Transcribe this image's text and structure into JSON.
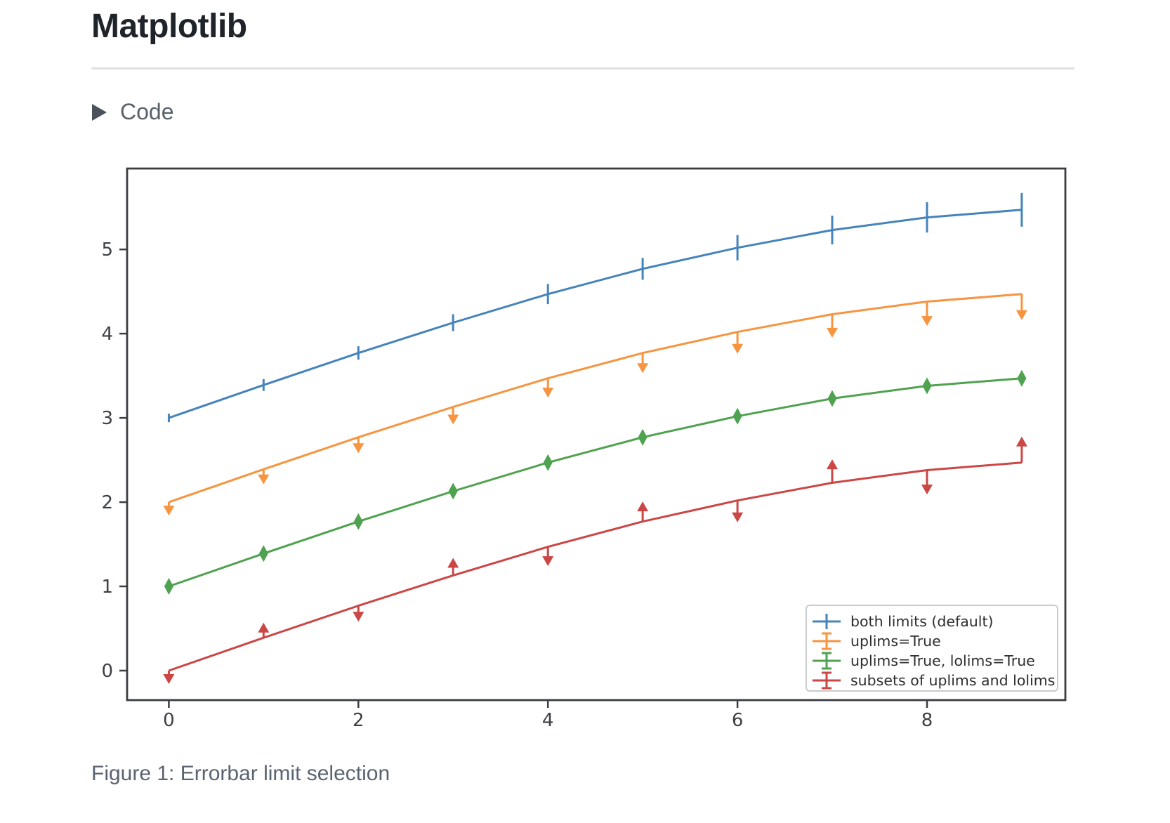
{
  "page": {
    "title": "Matplotlib",
    "code_toggle": {
      "label": "Code",
      "icon": "triangle-right-icon",
      "state": "collapsed"
    },
    "caption": "Figure 1: Errorbar limit selection"
  },
  "chart_data": {
    "type": "line",
    "x": [
      0,
      1,
      2,
      3,
      4,
      5,
      6,
      7,
      8,
      9
    ],
    "series": [
      {
        "name": "both limits (default)",
        "color": "#4583bb",
        "limits": "both",
        "values": [
          3.0,
          3.39,
          3.77,
          4.13,
          4.47,
          4.77,
          5.02,
          5.23,
          5.38,
          5.47
        ],
        "yerr": [
          0.05,
          0.07,
          0.08,
          0.1,
          0.12,
          0.13,
          0.15,
          0.17,
          0.18,
          0.2
        ]
      },
      {
        "name": "uplims=True",
        "color": "#f79440",
        "limits": "uplims",
        "values": [
          2.0,
          2.39,
          2.77,
          3.13,
          3.47,
          3.77,
          4.02,
          4.23,
          4.38,
          4.47
        ],
        "yerr": [
          0.05,
          0.07,
          0.08,
          0.1,
          0.12,
          0.13,
          0.15,
          0.17,
          0.18,
          0.2
        ]
      },
      {
        "name": "uplims=True, lolims=True",
        "color": "#4fa24f",
        "limits": "uplims_lolims",
        "values": [
          1.0,
          1.39,
          1.77,
          2.13,
          2.47,
          2.77,
          3.02,
          3.23,
          3.38,
          3.47
        ],
        "yerr": [
          0.05,
          0.07,
          0.08,
          0.1,
          0.12,
          0.13,
          0.15,
          0.17,
          0.18,
          0.2
        ]
      },
      {
        "name": "subsets of uplims and lolims",
        "color": "#cb4644",
        "limits": "alternating",
        "values": [
          0.0,
          0.39,
          0.77,
          1.13,
          1.47,
          1.77,
          2.02,
          2.23,
          2.38,
          2.47
        ],
        "yerr": [
          0.05,
          0.07,
          0.08,
          0.1,
          0.12,
          0.13,
          0.15,
          0.17,
          0.18,
          0.2
        ]
      }
    ],
    "xticks": [
      0,
      2,
      4,
      6,
      8
    ],
    "yticks": [
      0,
      1,
      2,
      3,
      4,
      5
    ],
    "xlim": [
      -0.44,
      9.46
    ],
    "ylim": [
      -0.35,
      5.96
    ],
    "grid": false,
    "legend": {
      "position": "lower right"
    },
    "axis_color": "#3a3d41",
    "tick_label_color": "#3c3f43",
    "legend_text_color": "#2d2d2d",
    "legend_border_color": "#c9cbcd"
  }
}
